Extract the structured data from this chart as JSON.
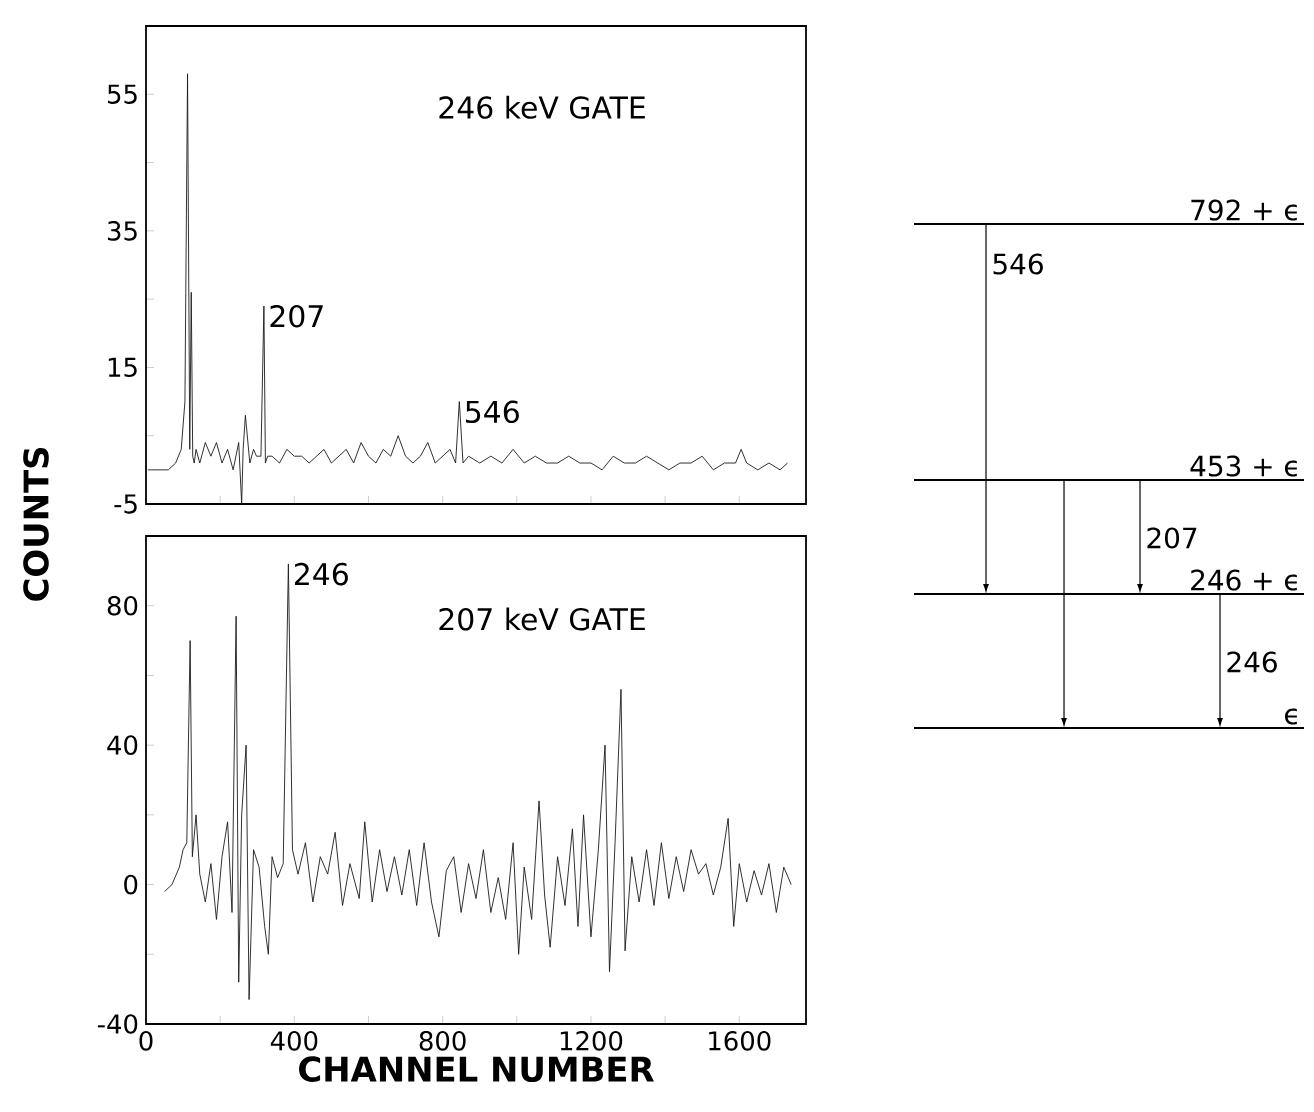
{
  "chart_data": [
    {
      "type": "line",
      "title": "246 keV GATE",
      "ylabel": "COUNTS",
      "color": "#1a1a1a",
      "tick_labels": "y",
      "xlim": [
        0,
        1780
      ],
      "ylim": [
        -5,
        65
      ],
      "xticks": [
        {
          "value": 0,
          "label": null
        },
        {
          "value": 200,
          "label": null
        },
        {
          "value": 400,
          "label": null
        },
        {
          "value": 600,
          "label": null
        },
        {
          "value": 800,
          "label": null
        },
        {
          "value": 1000,
          "label": null
        },
        {
          "value": 1200,
          "label": null
        },
        {
          "value": 1400,
          "label": null
        },
        {
          "value": 1600,
          "label": null
        }
      ],
      "yticks": [
        -5,
        {
          "value": 5,
          "label": null
        },
        15,
        {
          "value": 25,
          "label": null
        },
        35,
        {
          "value": 45,
          "label": null
        },
        55
      ],
      "annotations": [
        {
          "text": "207",
          "x": 318,
          "y": 24
        },
        {
          "text": "546",
          "x": 845,
          "y": 10
        }
      ],
      "x": [
        5,
        40,
        60,
        80,
        95,
        105,
        112,
        118,
        122,
        126,
        130,
        135,
        145,
        160,
        175,
        190,
        205,
        220,
        235,
        250,
        258,
        262,
        268,
        280,
        290,
        298,
        310,
        318,
        322,
        328,
        340,
        360,
        380,
        400,
        420,
        440,
        460,
        480,
        500,
        520,
        540,
        560,
        580,
        600,
        620,
        640,
        660,
        680,
        700,
        720,
        740,
        760,
        780,
        800,
        820,
        835,
        845,
        855,
        870,
        900,
        930,
        960,
        990,
        1020,
        1050,
        1080,
        1110,
        1140,
        1170,
        1200,
        1230,
        1260,
        1290,
        1320,
        1350,
        1380,
        1410,
        1440,
        1470,
        1500,
        1530,
        1560,
        1590,
        1605,
        1620,
        1650,
        1680,
        1710,
        1730
      ],
      "values": [
        0,
        0,
        0,
        1,
        3,
        10,
        58,
        3,
        26,
        2,
        1,
        3,
        1,
        4,
        2,
        4,
        1,
        3,
        0,
        4,
        -5,
        3,
        8,
        1,
        3,
        2,
        2,
        24,
        1,
        2,
        2,
        1,
        3,
        2,
        2,
        1,
        2,
        3,
        1,
        2,
        3,
        1,
        4,
        2,
        1,
        3,
        2,
        5,
        2,
        1,
        2,
        4,
        1,
        2,
        3,
        1,
        10,
        1,
        2,
        1,
        2,
        1,
        3,
        1,
        2,
        1,
        1,
        2,
        1,
        1,
        0,
        2,
        1,
        1,
        2,
        1,
        0,
        1,
        1,
        2,
        0,
        1,
        1,
        3,
        1,
        0,
        1,
        0,
        1
      ]
    },
    {
      "type": "line",
      "title": "207 keV GATE",
      "xlabel": "CHANNEL NUMBER",
      "color": "#1a1a1a",
      "xlim": [
        0,
        1780
      ],
      "ylim": [
        -40,
        100
      ],
      "xticks": [
        0,
        {
          "value": 200,
          "label": null
        },
        400,
        {
          "value": 600,
          "label": null
        },
        800,
        {
          "value": 1000,
          "label": null
        },
        1200,
        {
          "value": 1400,
          "label": null
        },
        1600
      ],
      "yticks": [
        -40,
        {
          "value": -20,
          "label": null
        },
        0,
        {
          "value": 20,
          "label": null
        },
        40,
        {
          "value": 60,
          "label": null
        },
        80
      ],
      "annotations": [
        {
          "text": "246",
          "x": 384,
          "y": 92
        }
      ],
      "x": [
        50,
        70,
        90,
        100,
        110,
        119,
        125,
        135,
        145,
        160,
        175,
        190,
        205,
        220,
        232,
        243,
        250,
        258,
        270,
        278,
        290,
        305,
        320,
        330,
        340,
        355,
        370,
        384,
        395,
        410,
        430,
        450,
        470,
        490,
        510,
        530,
        550,
        575,
        590,
        610,
        630,
        650,
        670,
        690,
        710,
        730,
        750,
        770,
        790,
        810,
        830,
        850,
        870,
        890,
        910,
        930,
        950,
        970,
        990,
        1005,
        1020,
        1040,
        1060,
        1075,
        1090,
        1110,
        1130,
        1150,
        1165,
        1180,
        1200,
        1220,
        1238,
        1250,
        1265,
        1281,
        1292,
        1310,
        1330,
        1350,
        1370,
        1390,
        1410,
        1430,
        1450,
        1470,
        1490,
        1510,
        1530,
        1550,
        1570,
        1585,
        1600,
        1620,
        1640,
        1660,
        1680,
        1700,
        1720,
        1740
      ],
      "values": [
        -2,
        0,
        5,
        10,
        12,
        70,
        8,
        20,
        3,
        -5,
        6,
        -10,
        8,
        18,
        -8,
        77,
        -28,
        20,
        40,
        -33,
        10,
        5,
        -12,
        -20,
        8,
        2,
        6,
        92,
        10,
        3,
        12,
        -5,
        8,
        3,
        15,
        -6,
        6,
        -4,
        18,
        -5,
        10,
        -2,
        8,
        -3,
        10,
        -6,
        12,
        -5,
        -15,
        4,
        8,
        -8,
        6,
        -4,
        10,
        -8,
        2,
        -10,
        12,
        -20,
        5,
        -10,
        24,
        -3,
        -18,
        8,
        -6,
        16,
        -12,
        20,
        -15,
        10,
        40,
        -25,
        12,
        56,
        -19,
        8,
        -5,
        10,
        -6,
        12,
        -4,
        8,
        -2,
        10,
        3,
        6,
        -3,
        5,
        19,
        -12,
        6,
        -5,
        4,
        -3,
        6,
        -8,
        5,
        0
      ]
    },
    {
      "type": "other",
      "annotations": [
        "792 + ϵ",
        "453 + ϵ",
        "246 + ϵ",
        "ϵ",
        "546",
        "207",
        "246"
      ]
    }
  ]
}
